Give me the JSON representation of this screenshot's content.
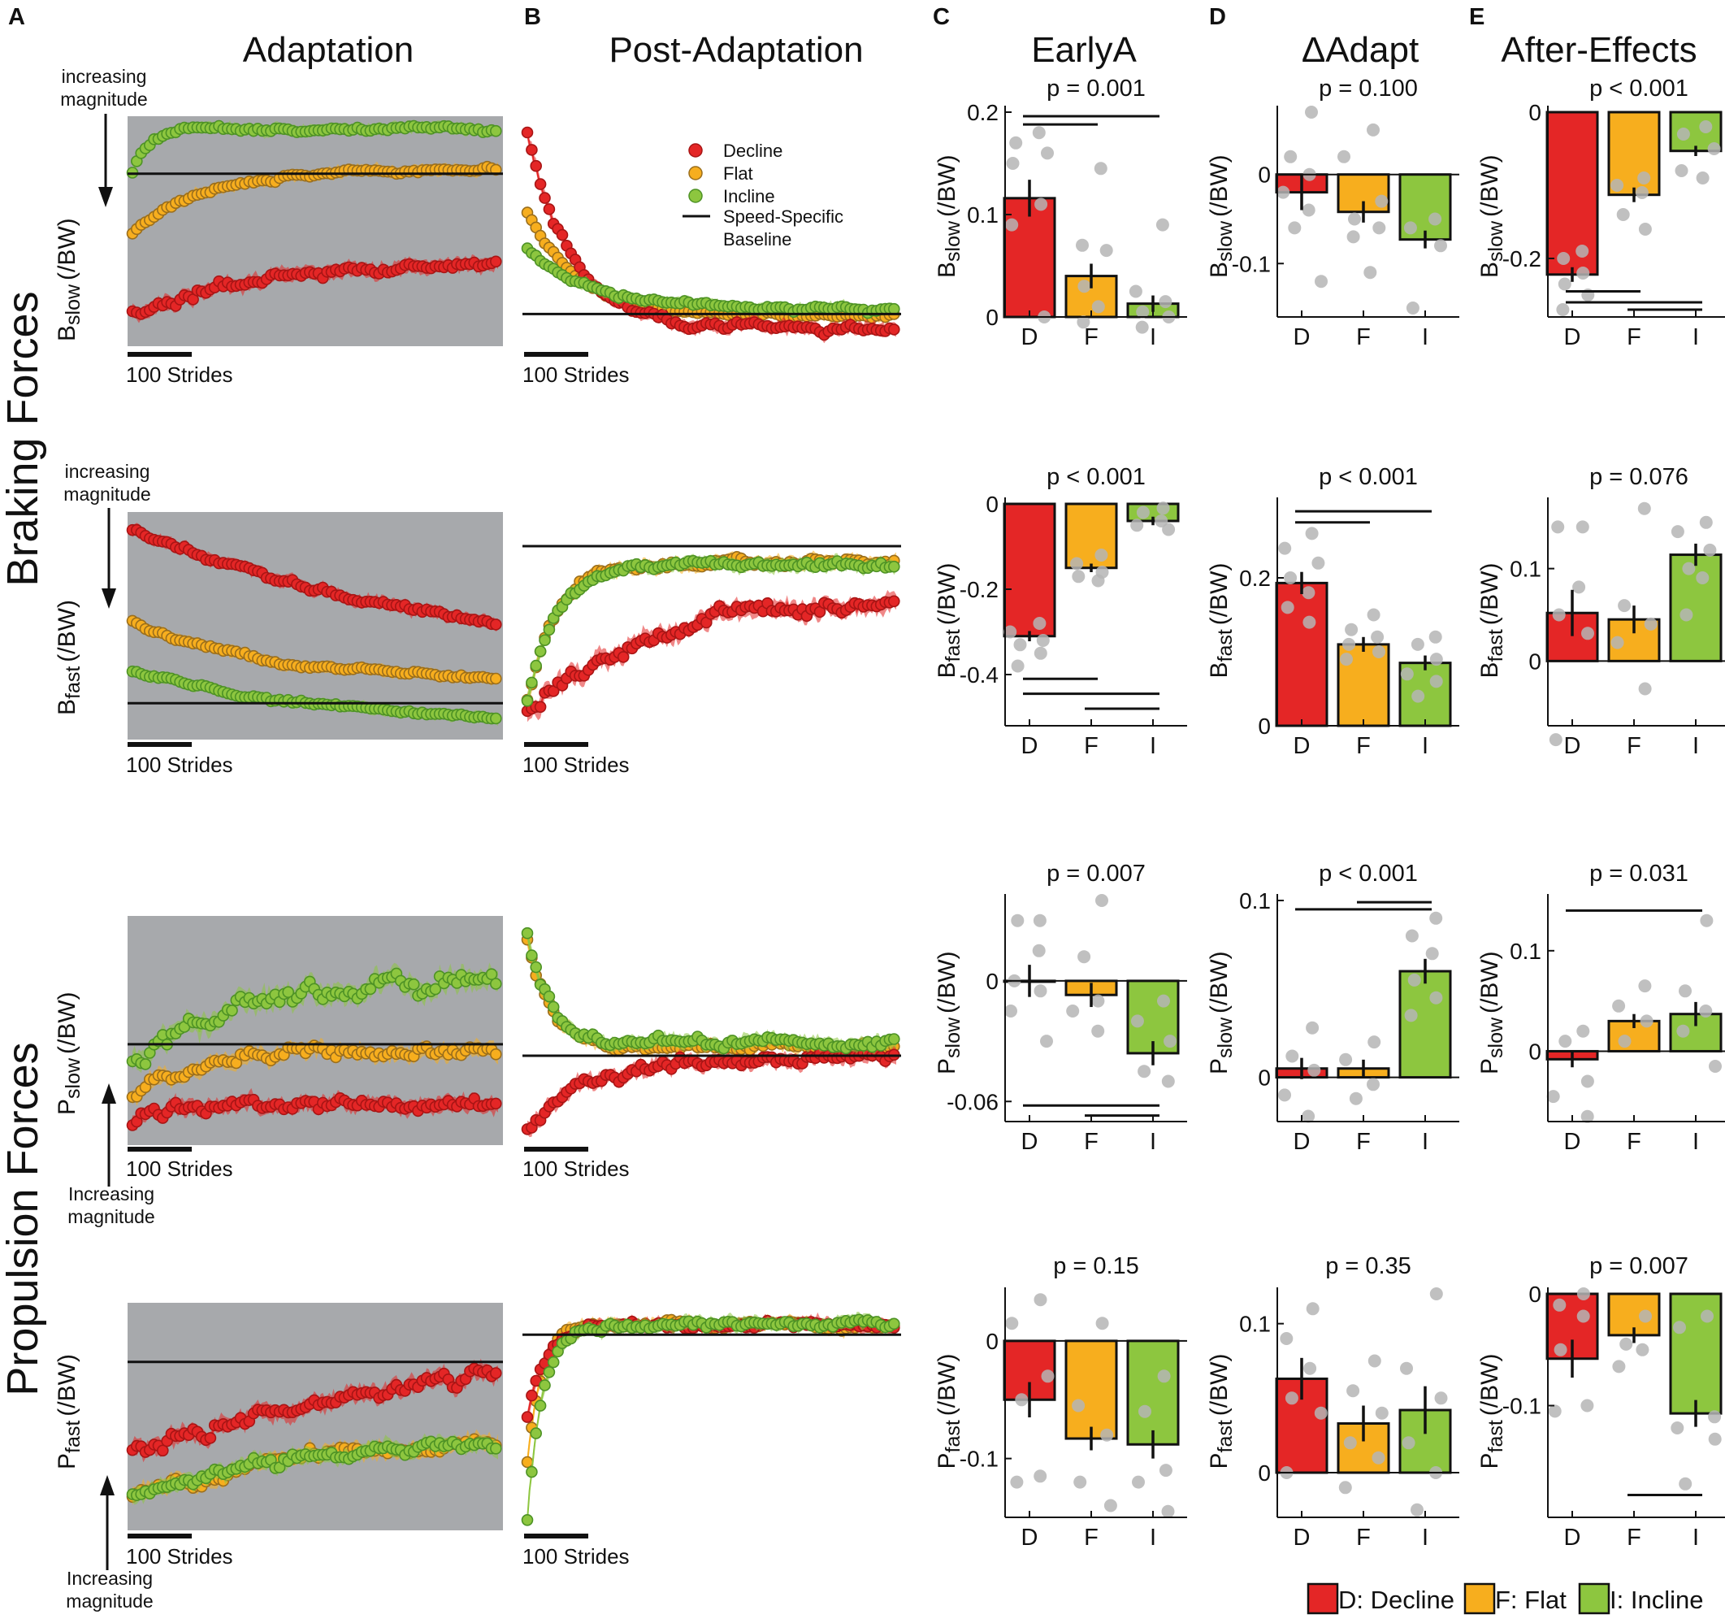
{
  "panel_letters": [
    "A",
    "B",
    "C",
    "D",
    "E"
  ],
  "column_titles": {
    "adaptation": "Adaptation",
    "post": "Post-Adaptation",
    "earlyA": "EarlyA",
    "dadapt": "ΔAdapt",
    "after": "After-Effects"
  },
  "row_group_labels": {
    "braking": "Braking Forces",
    "propulsion": "Propulsion Forces"
  },
  "strides_label": "100 Strides",
  "magnitude_labels": {
    "increasing_line1": "increasing",
    "capital_line1": "Increasing",
    "line2": "magnitude"
  },
  "ylabels": {
    "Bslow": {
      "main": "B",
      "sub": "slow",
      "unit": "(/BW)"
    },
    "Bfast": {
      "main": "B",
      "sub": "fast",
      "unit": "(/BW)"
    },
    "Pslow": {
      "main": "P",
      "sub": "slow",
      "unit": "(/BW)"
    },
    "Pfast": {
      "main": "P",
      "sub": "fast",
      "unit": "(/BW)"
    }
  },
  "legend": {
    "decline": "Decline",
    "flat": "Flat",
    "incline": "Incline",
    "baseline_line1": "Speed-Specific",
    "baseline_line2": "Baseline"
  },
  "bottom_legend": {
    "decline": "D: Decline",
    "flat": "F: Flat",
    "incline": "I: Incline"
  },
  "colors": {
    "decline": "#e42626",
    "decline_dark": "#a81515",
    "flat": "#f7ae1e",
    "flat_dark": "#9a6e1c",
    "incline": "#8dc63f",
    "incline_dark": "#4d9225",
    "shade": "#a7a9ac",
    "dots": "#b5b5b5"
  },
  "chart_data": [
    {
      "id": "adapt-bslow",
      "type": "line",
      "row": "Bslow",
      "panel": "adaptation",
      "shaded": true,
      "baseline": 0.25,
      "series": [
        {
          "name": "Decline",
          "start": 0.86,
          "end": 0.64,
          "rate": 0.3,
          "noise": 0.025
        },
        {
          "name": "Flat",
          "start": 0.51,
          "end": 0.23,
          "rate": 0.2,
          "noise": 0.012
        },
        {
          "name": "Incline",
          "start": 0.25,
          "end": 0.06,
          "rate": 0.04,
          "noise": 0.012
        }
      ]
    },
    {
      "id": "post-bslow",
      "type": "line",
      "row": "Bslow",
      "panel": "post",
      "shaded": false,
      "baseline": 0.86,
      "series": [
        {
          "name": "Decline",
          "start": 0.07,
          "end": 0.92,
          "rate": 0.12,
          "noise": 0.02
        },
        {
          "name": "Flat",
          "start": 0.42,
          "end": 0.87,
          "rate": 0.14,
          "noise": 0.012
        },
        {
          "name": "Incline",
          "start": 0.58,
          "end": 0.84,
          "rate": 0.18,
          "noise": 0.012
        }
      ]
    },
    {
      "id": "adapt-bfast",
      "type": "line",
      "row": "Bfast",
      "panel": "adaptation",
      "shaded": true,
      "baseline": 0.84,
      "series": [
        {
          "name": "Decline",
          "start": 0.08,
          "end": 0.68,
          "rate": 0.9,
          "noise": 0.015
        },
        {
          "name": "Flat",
          "start": 0.48,
          "end": 0.74,
          "rate": 0.35,
          "noise": 0.01
        },
        {
          "name": "Incline",
          "start": 0.7,
          "end": 0.95,
          "rate": 0.6,
          "noise": 0.01
        }
      ]
    },
    {
      "id": "post-bfast",
      "type": "line",
      "row": "Bfast",
      "panel": "post",
      "shaded": false,
      "baseline": 0.15,
      "series": [
        {
          "name": "Decline",
          "start": 0.88,
          "end": 0.35,
          "rate": 0.35,
          "noise": 0.04
        },
        {
          "name": "Flat",
          "start": 0.83,
          "end": 0.22,
          "rate": 0.08,
          "noise": 0.02
        },
        {
          "name": "Incline",
          "start": 0.83,
          "end": 0.23,
          "rate": 0.08,
          "noise": 0.02
        }
      ]
    },
    {
      "id": "adapt-pslow",
      "type": "line",
      "row": "Pslow",
      "panel": "adaptation",
      "shaded": true,
      "baseline": 0.56,
      "series": [
        {
          "name": "Decline",
          "start": 0.92,
          "end": 0.82,
          "rate": 0.1,
          "noise": 0.03
        },
        {
          "name": "Flat",
          "start": 0.8,
          "end": 0.58,
          "rate": 0.15,
          "noise": 0.03
        },
        {
          "name": "Incline",
          "start": 0.64,
          "end": 0.28,
          "rate": 0.3,
          "noise": 0.05
        }
      ]
    },
    {
      "id": "post-pslow",
      "type": "line",
      "row": "Pslow",
      "panel": "post",
      "shaded": false,
      "baseline": 0.61,
      "series": [
        {
          "name": "Decline",
          "start": 0.94,
          "end": 0.62,
          "rate": 0.15,
          "noise": 0.03
        },
        {
          "name": "Flat",
          "start": 0.1,
          "end": 0.57,
          "rate": 0.06,
          "noise": 0.02
        },
        {
          "name": "Incline",
          "start": 0.08,
          "end": 0.55,
          "rate": 0.06,
          "noise": 0.025
        }
      ]
    },
    {
      "id": "adapt-pfast",
      "type": "line",
      "row": "Pfast",
      "panel": "adaptation",
      "shaded": true,
      "baseline": 0.26,
      "series": [
        {
          "name": "Decline",
          "start": 0.64,
          "end": 0.08,
          "rate": 1.2,
          "noise": 0.035
        },
        {
          "name": "Flat",
          "start": 0.85,
          "end": 0.55,
          "rate": 0.6,
          "noise": 0.03
        },
        {
          "name": "Incline",
          "start": 0.85,
          "end": 0.57,
          "rate": 0.5,
          "noise": 0.03
        }
      ]
    },
    {
      "id": "post-pfast",
      "type": "line",
      "row": "Pfast",
      "panel": "post",
      "shaded": false,
      "baseline": 0.14,
      "series": [
        {
          "name": "Decline",
          "start": 0.5,
          "end": 0.1,
          "rate": 0.05,
          "noise": 0.02
        },
        {
          "name": "Flat",
          "start": 0.7,
          "end": 0.1,
          "rate": 0.04,
          "noise": 0.02
        },
        {
          "name": "Incline",
          "start": 0.95,
          "end": 0.1,
          "rate": 0.04,
          "noise": 0.02
        }
      ]
    },
    {
      "id": "earlyA-bslow",
      "type": "bar",
      "column": "earlyA",
      "row": "Bslow",
      "p_text": "p = 0.001",
      "ylim": [
        0,
        0.2
      ],
      "ticks": [
        0,
        0.1,
        0.2
      ],
      "tick_labels": [
        "0",
        "0.1",
        "0.2"
      ],
      "categories": [
        "D",
        "F",
        "I"
      ],
      "values": [
        0.116,
        0.04,
        0.013
      ],
      "errors": [
        0.018,
        0.012,
        0.008
      ],
      "subjects": [
        [
          0.18,
          0.17,
          0.16,
          0.15,
          0.11,
          0.09,
          0.0
        ],
        [
          0.145,
          0.07,
          0.065,
          0.03,
          0.01,
          -0.005
        ],
        [
          0.09,
          0.025,
          0.015,
          0.005,
          0.0,
          -0.01
        ]
      ],
      "sig_bars": [
        {
          "from": 0,
          "to": 1,
          "y": 0.188
        },
        {
          "from": 0,
          "to": 2,
          "y": 0.196
        }
      ]
    },
    {
      "id": "dadapt-bslow",
      "type": "bar",
      "column": "dadapt",
      "row": "Bslow",
      "p_text": "p = 0.100",
      "ylim": [
        -0.16,
        0.07
      ],
      "ticks": [
        0,
        -0.1
      ],
      "tick_labels": [
        "0",
        "-0.1"
      ],
      "categories": [
        "D",
        "F",
        "I"
      ],
      "values": [
        -0.02,
        -0.042,
        -0.073
      ],
      "errors": [
        0.02,
        0.012,
        0.01
      ],
      "subjects": [
        [
          0.07,
          0.02,
          0.0,
          -0.02,
          -0.04,
          -0.06,
          -0.12
        ],
        [
          0.05,
          0.02,
          -0.03,
          -0.05,
          -0.06,
          -0.07,
          -0.11
        ],
        [
          -0.05,
          -0.06,
          -0.08,
          -0.15
        ]
      ],
      "sig_bars": []
    },
    {
      "id": "after-bslow",
      "type": "bar",
      "column": "after",
      "row": "Bslow",
      "p_text": "p < 0.001",
      "ylim": [
        -0.28,
        0.0
      ],
      "ticks": [
        0,
        -0.2
      ],
      "tick_labels": [
        "0",
        "-0.2"
      ],
      "categories": [
        "D",
        "F",
        "I"
      ],
      "values": [
        -0.222,
        -0.113,
        -0.053
      ],
      "errors": [
        0.01,
        0.01,
        0.007
      ],
      "subjects": [
        [
          -0.19,
          -0.2,
          -0.22,
          -0.235,
          -0.25,
          -0.27
        ],
        [
          -0.09,
          -0.1,
          -0.11,
          -0.14,
          -0.16
        ],
        [
          -0.02,
          -0.03,
          -0.05,
          -0.08,
          -0.09
        ]
      ],
      "sig_bars": [
        {
          "from": 0,
          "to": 1,
          "y": -0.245
        },
        {
          "from": 0,
          "to": 2,
          "y": -0.26
        },
        {
          "from": 1,
          "to": 2,
          "y": -0.27
        }
      ]
    },
    {
      "id": "earlyA-bfast",
      "type": "bar",
      "column": "earlyA",
      "row": "Bfast",
      "p_text": "p < 0.001",
      "ylim": [
        -0.52,
        0.0
      ],
      "ticks": [
        0,
        -0.2,
        -0.4
      ],
      "tick_labels": [
        "0",
        "-0.2",
        "-0.4"
      ],
      "categories": [
        "D",
        "F",
        "I"
      ],
      "values": [
        -0.31,
        -0.15,
        -0.04
      ],
      "errors": [
        0.012,
        0.01,
        0.01
      ],
      "subjects": [
        [
          -0.28,
          -0.3,
          -0.32,
          -0.33,
          -0.35,
          -0.38
        ],
        [
          -0.12,
          -0.14,
          -0.16,
          -0.17,
          -0.18
        ],
        [
          -0.01,
          -0.02,
          -0.04,
          -0.05,
          -0.06
        ]
      ],
      "sig_bars": [
        {
          "from": 0,
          "to": 1,
          "y": -0.41
        },
        {
          "from": 0,
          "to": 2,
          "y": -0.445
        },
        {
          "from": 1,
          "to": 2,
          "y": -0.48
        }
      ]
    },
    {
      "id": "dadapt-bfast",
      "type": "bar",
      "column": "dadapt",
      "row": "Bfast",
      "p_text": "p < 0.001",
      "ylim": [
        0,
        0.3
      ],
      "ticks": [
        0,
        0.2
      ],
      "tick_labels": [
        "0",
        "0.2"
      ],
      "categories": [
        "D",
        "F",
        "I"
      ],
      "values": [
        0.193,
        0.11,
        0.085
      ],
      "errors": [
        0.015,
        0.01,
        0.01
      ],
      "subjects": [
        [
          0.26,
          0.24,
          0.22,
          0.2,
          0.18,
          0.16,
          0.14
        ],
        [
          0.15,
          0.13,
          0.12,
          0.11,
          0.1,
          0.09
        ],
        [
          0.12,
          0.11,
          0.09,
          0.07,
          0.06,
          0.04
        ]
      ],
      "sig_bars": [
        {
          "from": 0,
          "to": 1,
          "y": 0.275
        },
        {
          "from": 0,
          "to": 2,
          "y": 0.29
        }
      ]
    },
    {
      "id": "after-bfast",
      "type": "bar",
      "column": "after",
      "row": "Bfast",
      "p_text": "p = 0.076",
      "ylim": [
        -0.07,
        0.17
      ],
      "ticks": [
        0,
        0.1
      ],
      "tick_labels": [
        "0",
        "0.1"
      ],
      "categories": [
        "D",
        "F",
        "I"
      ],
      "values": [
        0.052,
        0.045,
        0.115
      ],
      "errors": [
        0.025,
        0.015,
        0.012
      ],
      "subjects": [
        [
          0.145,
          0.145,
          0.08,
          0.05,
          0.03,
          -0.085
        ],
        [
          0.165,
          0.06,
          0.04,
          0.02,
          -0.03
        ],
        [
          0.15,
          0.14,
          0.12,
          0.1,
          0.09,
          0.05
        ]
      ],
      "sig_bars": []
    },
    {
      "id": "earlyA-pslow",
      "type": "bar",
      "column": "earlyA",
      "row": "Pslow",
      "p_text": "p = 0.007",
      "ylim": [
        -0.07,
        0.04
      ],
      "ticks": [
        0,
        -0.06
      ],
      "tick_labels": [
        "0",
        "-0.06"
      ],
      "categories": [
        "D",
        "F",
        "I"
      ],
      "values": [
        0.0,
        -0.007,
        -0.036
      ],
      "errors": [
        0.008,
        0.006,
        0.006
      ],
      "subjects": [
        [
          0.03,
          0.03,
          0.015,
          0.0,
          -0.005,
          -0.015,
          -0.03
        ],
        [
          0.04,
          0.012,
          -0.01,
          -0.015,
          -0.025
        ],
        [
          -0.01,
          -0.02,
          -0.03,
          -0.045,
          -0.05
        ]
      ],
      "sig_bars": [
        {
          "from": 0,
          "to": 2,
          "y": -0.062
        },
        {
          "from": 1,
          "to": 2,
          "y": -0.067
        }
      ]
    },
    {
      "id": "dadapt-pslow",
      "type": "bar",
      "column": "dadapt",
      "row": "Pslow",
      "p_text": "p < 0.001",
      "ylim": [
        -0.025,
        0.1
      ],
      "ticks": [
        0,
        0.1
      ],
      "tick_labels": [
        "0",
        "0.1"
      ],
      "categories": [
        "D",
        "F",
        "I"
      ],
      "values": [
        0.005,
        0.005,
        0.06
      ],
      "errors": [
        0.006,
        0.005,
        0.007
      ],
      "subjects": [
        [
          0.028,
          0.012,
          0.004,
          -0.01,
          -0.022
        ],
        [
          0.02,
          0.01,
          -0.004,
          -0.012
        ],
        [
          0.09,
          0.08,
          0.07,
          0.055,
          0.045,
          0.035
        ]
      ],
      "sig_bars": [
        {
          "from": 0,
          "to": 2,
          "y": 0.095
        },
        {
          "from": 1,
          "to": 2,
          "y": 0.099
        }
      ]
    },
    {
      "id": "after-pslow",
      "type": "bar",
      "column": "after",
      "row": "Pslow",
      "p_text": "p = 0.031",
      "ylim": [
        -0.07,
        0.15
      ],
      "ticks": [
        0,
        0.1
      ],
      "tick_labels": [
        "0",
        "0.1"
      ],
      "categories": [
        "D",
        "F",
        "I"
      ],
      "values": [
        -0.008,
        0.03,
        0.037
      ],
      "errors": [
        0.008,
        0.007,
        0.012
      ],
      "subjects": [
        [
          0.02,
          0.01,
          -0.03,
          -0.045,
          -0.065
        ],
        [
          0.065,
          0.045,
          0.03,
          0.01
        ],
        [
          0.13,
          0.06,
          0.04,
          0.02,
          -0.015
        ]
      ],
      "sig_bars": [
        {
          "from": 0,
          "to": 2,
          "y": 0.14
        }
      ]
    },
    {
      "id": "earlyA-pfast",
      "type": "bar",
      "column": "earlyA",
      "row": "Pfast",
      "p_text": "p = 0.15",
      "ylim": [
        -0.15,
        0.04
      ],
      "ticks": [
        0,
        -0.1
      ],
      "tick_labels": [
        "0",
        "-0.1"
      ],
      "categories": [
        "D",
        "F",
        "I"
      ],
      "values": [
        -0.05,
        -0.083,
        -0.088
      ],
      "errors": [
        0.015,
        0.01,
        0.012
      ],
      "subjects": [
        [
          0.035,
          0.015,
          -0.03,
          -0.05,
          -0.115,
          -0.12
        ],
        [
          0.015,
          -0.055,
          -0.08,
          -0.12,
          -0.14
        ],
        [
          -0.03,
          -0.06,
          -0.11,
          -0.12,
          -0.145
        ]
      ],
      "sig_bars": []
    },
    {
      "id": "dadapt-pfast",
      "type": "bar",
      "column": "dadapt",
      "row": "Pfast",
      "p_text": "p = 0.35",
      "ylim": [
        -0.03,
        0.12
      ],
      "ticks": [
        0,
        0.1
      ],
      "tick_labels": [
        "0",
        "0.1"
      ],
      "categories": [
        "D",
        "F",
        "I"
      ],
      "values": [
        0.063,
        0.033,
        0.042
      ],
      "errors": [
        0.014,
        0.012,
        0.016
      ],
      "subjects": [
        [
          0.11,
          0.09,
          0.07,
          0.05,
          0.04,
          0.0
        ],
        [
          0.075,
          0.055,
          0.04,
          0.02,
          0.01,
          -0.01
        ],
        [
          0.12,
          0.07,
          0.05,
          0.02,
          0.0,
          -0.025
        ]
      ],
      "sig_bars": []
    },
    {
      "id": "after-pfast",
      "type": "bar",
      "column": "after",
      "row": "Pfast",
      "p_text": "p = 0.007",
      "ylim": [
        -0.2,
        0.0
      ],
      "ticks": [
        0,
        -0.1
      ],
      "tick_labels": [
        "0",
        "-0.1"
      ],
      "categories": [
        "D",
        "F",
        "I"
      ],
      "values": [
        -0.058,
        -0.037,
        -0.107
      ],
      "errors": [
        0.017,
        0.007,
        0.012
      ],
      "subjects": [
        [
          0.0,
          -0.01,
          -0.02,
          -0.05,
          -0.1,
          -0.105
        ],
        [
          -0.02,
          -0.045,
          -0.05,
          -0.065
        ],
        [
          -0.02,
          -0.03,
          -0.11,
          -0.12,
          -0.13,
          -0.17
        ]
      ],
      "sig_bars": [
        {
          "from": 1,
          "to": 2,
          "y": -0.18
        }
      ]
    }
  ]
}
